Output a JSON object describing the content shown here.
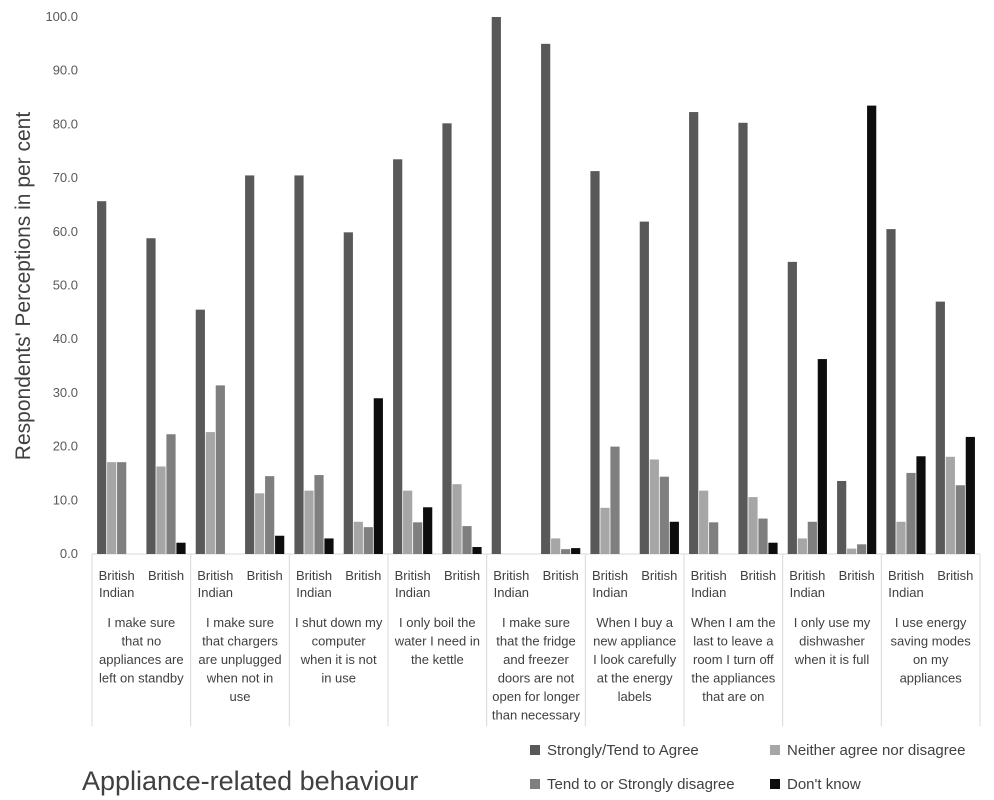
{
  "chart_data": {
    "type": "bar",
    "ylabel": "Respondents' Perceptions in per cent",
    "xlabel": "Appliance-related behaviour",
    "ylim": [
      0,
      100
    ],
    "yticks": [
      "0.0",
      "10.0",
      "20.0",
      "30.0",
      "40.0",
      "50.0",
      "60.0",
      "70.0",
      "80.0",
      "90.0",
      "100.0"
    ],
    "grid": false,
    "legend_position": "bottom-right",
    "groups": [
      {
        "label": [
          "I make sure",
          "that no",
          "appliances are",
          "left on standby"
        ],
        "categories": [
          [
            "British",
            "Indian"
          ],
          [
            "British"
          ]
        ]
      },
      {
        "label": [
          "I make sure",
          "that chargers",
          "are unplugged",
          "when not in",
          "use"
        ],
        "categories": [
          [
            "British",
            "Indian"
          ],
          [
            "British"
          ]
        ]
      },
      {
        "label": [
          "I shut down my",
          "computer",
          "when it is not",
          "in use"
        ],
        "categories": [
          [
            "British",
            "Indian"
          ],
          [
            "British"
          ]
        ]
      },
      {
        "label": [
          "I only boil the",
          "water I need in",
          "the kettle"
        ],
        "categories": [
          [
            "British",
            "Indian"
          ],
          [
            "British"
          ]
        ]
      },
      {
        "label": [
          "I make sure",
          "that the fridge",
          "and freezer",
          "doors are not",
          "open for longer",
          "than necessary"
        ],
        "categories": [
          [
            "British",
            "Indian"
          ],
          [
            "British"
          ]
        ]
      },
      {
        "label": [
          "When I buy a",
          "new appliance",
          "I look carefully",
          "at the energy",
          "labels"
        ],
        "categories": [
          [
            "British",
            "Indian"
          ],
          [
            "British"
          ]
        ]
      },
      {
        "label": [
          "When I am the",
          "last to leave a",
          "room I turn off",
          "the appliances",
          "that are on"
        ],
        "categories": [
          [
            "British",
            "Indian"
          ],
          [
            "British"
          ]
        ]
      },
      {
        "label": [
          "I only use my",
          "dishwasher",
          "when it is full"
        ],
        "categories": [
          [
            "British",
            "Indian"
          ],
          [
            "British"
          ]
        ]
      },
      {
        "label": [
          "I use energy",
          "saving modes",
          "on my",
          "appliances"
        ],
        "categories": [
          [
            "British",
            "Indian"
          ],
          [
            "British"
          ]
        ]
      }
    ],
    "series": [
      {
        "name": "Strongly/Tend to Agree",
        "color": "#595959",
        "values": [
          65.7,
          58.8,
          45.5,
          70.5,
          70.5,
          59.9,
          73.5,
          80.2,
          100.0,
          95.0,
          71.3,
          61.9,
          82.3,
          80.3,
          54.4,
          13.6,
          60.5,
          47.0
        ]
      },
      {
        "name": "Neither agree nor disagree",
        "color": "#a6a6a6",
        "values": [
          17.1,
          16.3,
          22.7,
          11.3,
          11.8,
          6.0,
          11.8,
          13.0,
          0,
          2.9,
          8.6,
          17.6,
          11.8,
          10.6,
          2.9,
          1.0,
          6.0,
          18.1
        ]
      },
      {
        "name": "Tend to or Strongly disagree",
        "color": "#7f7f7f",
        "values": [
          17.1,
          22.3,
          31.4,
          14.5,
          14.7,
          5.0,
          5.9,
          5.2,
          0,
          0.9,
          20.0,
          14.4,
          5.9,
          6.6,
          6.0,
          1.8,
          15.1,
          12.8
        ]
      },
      {
        "name": "Don't know",
        "color": "#0d0d0d",
        "values": [
          0,
          2.1,
          0,
          3.4,
          2.9,
          29.0,
          8.7,
          1.3,
          0,
          1.1,
          0,
          6.0,
          0,
          2.1,
          36.3,
          83.5,
          18.2,
          21.8
        ]
      }
    ]
  }
}
